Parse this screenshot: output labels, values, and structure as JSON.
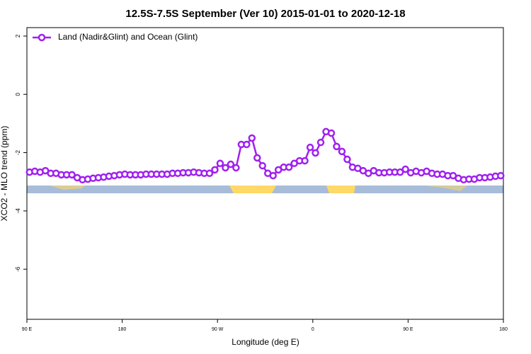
{
  "chart_data": {
    "type": "line",
    "title": "12.5S-7.5S September (Ver 10)   2015-01-01 to 2020-12-18",
    "x_label": "Longitude (deg E)",
    "y_label": "XCO2 - MLO trend (ppm)",
    "legend": "top-left",
    "xlim": [
      90,
      540
    ],
    "ylim": [
      -7.72,
      2.29
    ],
    "xticks": [
      {
        "value": 90,
        "label": "90 E"
      },
      180,
      {
        "value": 270,
        "label": "90 W"
      },
      {
        "value": 360,
        "label": "0"
      },
      {
        "value": 450,
        "label": "90 E"
      },
      {
        "value": 540,
        "label": "180"
      }
    ],
    "yticks": [
      -6,
      -4,
      -2,
      0,
      2
    ],
    "x": [
      92.5,
      97.5,
      102.5,
      107.5,
      112.5,
      117.5,
      122.5,
      127.5,
      132.5,
      137.5,
      142.5,
      147.5,
      152.5,
      157.5,
      162.5,
      167.5,
      172.5,
      177.5,
      182.5,
      187.5,
      192.5,
      197.5,
      202.5,
      207.5,
      212.5,
      217.5,
      222.5,
      227.5,
      232.5,
      237.5,
      242.5,
      247.5,
      252.5,
      257.5,
      262.5,
      267.5,
      272.5,
      277.5,
      282.5,
      287.5,
      292.5,
      297.5,
      302.5,
      307.5,
      312.5,
      317.5,
      322.5,
      327.5,
      332.5,
      337.5,
      342.5,
      347.5,
      352.5,
      357.5,
      362.5,
      367.5,
      372.5,
      377.5,
      382.5,
      387.5,
      392.5,
      397.5,
      402.5,
      407.5,
      412.5,
      417.5,
      422.5,
      427.5,
      432.5,
      437.5,
      442.5,
      447.5,
      452.5,
      457.5,
      462.5,
      467.5,
      472.5,
      477.5,
      482.5,
      487.5,
      492.5,
      497.5,
      502.5,
      507.5,
      512.5,
      517.5,
      522.5,
      527.5,
      532.5,
      537.5
    ],
    "series": [
      {
        "name": "Land (Nadir&Glint) and Ocean (Glint)",
        "color": "#a020f0",
        "values": [
          -2.67,
          -2.64,
          -2.67,
          -2.62,
          -2.71,
          -2.71,
          -2.76,
          -2.76,
          -2.76,
          -2.86,
          -2.93,
          -2.91,
          -2.88,
          -2.86,
          -2.84,
          -2.81,
          -2.79,
          -2.76,
          -2.74,
          -2.76,
          -2.76,
          -2.76,
          -2.74,
          -2.74,
          -2.74,
          -2.74,
          -2.74,
          -2.71,
          -2.71,
          -2.69,
          -2.69,
          -2.67,
          -2.69,
          -2.71,
          -2.71,
          -2.59,
          -2.37,
          -2.52,
          -2.4,
          -2.52,
          -1.72,
          -1.72,
          -1.5,
          -2.18,
          -2.45,
          -2.71,
          -2.79,
          -2.59,
          -2.5,
          -2.5,
          -2.37,
          -2.28,
          -2.28,
          -1.82,
          -2.01,
          -1.65,
          -1.28,
          -1.33,
          -1.79,
          -1.96,
          -2.23,
          -2.5,
          -2.54,
          -2.62,
          -2.71,
          -2.62,
          -2.69,
          -2.69,
          -2.67,
          -2.67,
          -2.67,
          -2.57,
          -2.69,
          -2.64,
          -2.69,
          -2.64,
          -2.71,
          -2.74,
          -2.74,
          -2.79,
          -2.79,
          -2.88,
          -2.93,
          -2.91,
          -2.91,
          -2.86,
          -2.86,
          -2.84,
          -2.81,
          -2.79
        ]
      }
    ]
  }
}
